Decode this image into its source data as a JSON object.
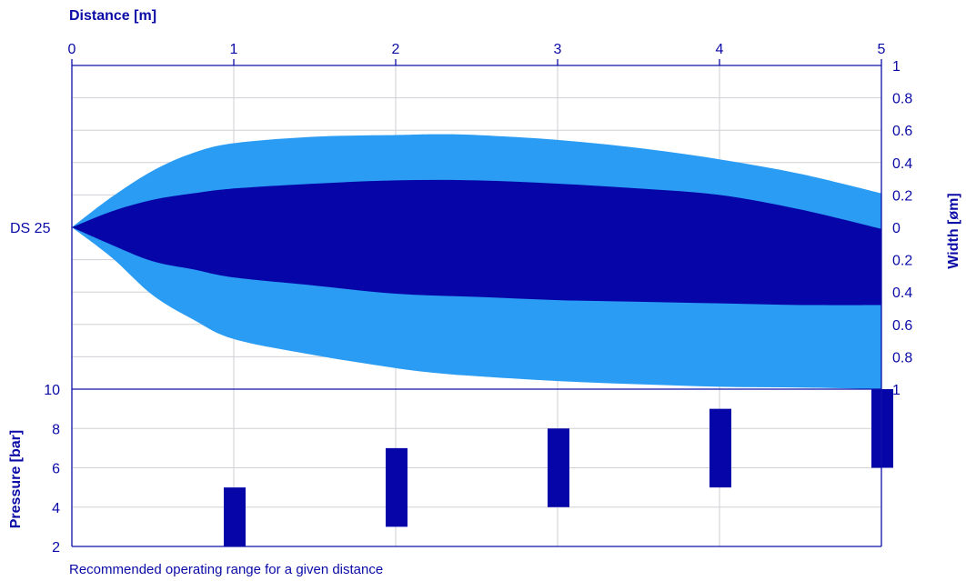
{
  "colors": {
    "axis": "#1010a8",
    "grid": "#cfcfd6",
    "outer_band": "#2b9cf3",
    "inner_band": "#0606a8",
    "pressure_bar": "#0606a8",
    "text": "#0a0aa6"
  },
  "chart_data": [
    {
      "type": "area",
      "xlabel": "Distance [m]",
      "ylabel": "Width [øm]",
      "series_label": "DS 25",
      "x_ticks": [
        "0",
        "1",
        "2",
        "3",
        "4",
        "5"
      ],
      "y_ticks_right": [
        "1",
        "0.8",
        "0.6",
        "0.4",
        "0.2",
        "0",
        "0.2",
        "0.4",
        "0.6",
        "0.8",
        "1"
      ],
      "xlim": [
        0,
        5
      ],
      "ylim": [
        -1,
        1
      ],
      "grid": true,
      "series": [
        {
          "band": "outer",
          "x": [
            0,
            0.25,
            0.5,
            0.75,
            1,
            1.5,
            2,
            2.25,
            2.5,
            3,
            3.5,
            4,
            4.5,
            5
          ],
          "upper": [
            0,
            0.19,
            0.35,
            0.46,
            0.52,
            0.56,
            0.57,
            0.575,
            0.57,
            0.54,
            0.49,
            0.42,
            0.33,
            0.21
          ],
          "lower": [
            0,
            -0.19,
            -0.42,
            -0.57,
            -0.69,
            -0.79,
            -0.87,
            -0.9,
            -0.92,
            -0.95,
            -0.97,
            -0.985,
            -0.99,
            -1.0
          ]
        },
        {
          "band": "inner",
          "x": [
            0,
            0.25,
            0.5,
            0.75,
            1,
            1.5,
            2,
            2.5,
            3,
            3.5,
            4,
            4.5,
            5
          ],
          "upper": [
            0,
            0.1,
            0.17,
            0.21,
            0.24,
            0.27,
            0.29,
            0.29,
            0.27,
            0.24,
            0.2,
            0.11,
            -0.01
          ],
          "lower": [
            0,
            -0.11,
            -0.21,
            -0.26,
            -0.31,
            -0.36,
            -0.41,
            -0.43,
            -0.45,
            -0.46,
            -0.47,
            -0.48,
            -0.48
          ]
        }
      ]
    },
    {
      "type": "bar",
      "ylabel": "Pressure [bar]",
      "y_ticks": [
        "10",
        "8",
        "6",
        "4",
        "2"
      ],
      "ylim": [
        2,
        10
      ],
      "grid": true,
      "ranges": [
        {
          "x": 1,
          "min": 2,
          "max": 5
        },
        {
          "x": 2,
          "min": 3,
          "max": 7
        },
        {
          "x": 3,
          "min": 4,
          "max": 8
        },
        {
          "x": 4,
          "min": 5,
          "max": 9
        },
        {
          "x": 5,
          "min": 6,
          "max": 10
        }
      ]
    }
  ],
  "footnote": "Recommended operating range for a given distance"
}
